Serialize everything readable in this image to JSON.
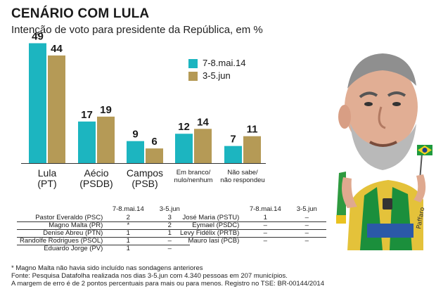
{
  "header": {
    "title": "CENÁRIO COM LULA",
    "subtitle": "Intenção de voto para presidente da República, em %"
  },
  "colors": {
    "series_1": "#1cb5c0",
    "series_2": "#b59a56",
    "axis": "#333333"
  },
  "chart_data": {
    "type": "bar",
    "title": "CENÁRIO COM LULA",
    "subtitle": "Intenção de voto para presidente da República, em %",
    "categories": [
      "Lula (PT)",
      "Aécio (PSDB)",
      "Campos (PSB)",
      "Em branco/ nulo/nenhum",
      "Não sabe/ não respondeu"
    ],
    "category_lines": [
      [
        "Lula",
        "(PT)"
      ],
      [
        "Aécio",
        "(PSDB)"
      ],
      [
        "Campos",
        "(PSB)"
      ],
      [
        "Em branco/",
        "nulo/nenhum"
      ],
      [
        "Não sabe/",
        "não respondeu"
      ]
    ],
    "series": [
      {
        "name": "7-8.mai.14",
        "values": [
          49,
          17,
          9,
          12,
          7
        ]
      },
      {
        "name": "3-5.jun",
        "values": [
          44,
          19,
          6,
          14,
          11
        ]
      }
    ],
    "ylim": [
      0,
      50
    ],
    "xlabel": "",
    "ylabel": "",
    "grid": false,
    "legend_position": "top-right"
  },
  "minor_candidates": {
    "headers": [
      "7-8.mai.14",
      "3-5.jun"
    ],
    "left": [
      {
        "name": "Pastor Everaldo (PSC)",
        "mai": "2",
        "jun": "3"
      },
      {
        "name": "Magno Malta (PR)",
        "mai": "*",
        "jun": "2"
      },
      {
        "name": "Denise Abreu (PTN)",
        "mai": "1",
        "jun": "1"
      },
      {
        "name": "Randolfe Rodrigues (PSOL)",
        "mai": "1",
        "jun": "–"
      },
      {
        "name": "Eduardo Jorge (PV)",
        "mai": "1",
        "jun": "–"
      }
    ],
    "right": [
      {
        "name": "José Maria (PSTU)",
        "mai": "1",
        "jun": "–"
      },
      {
        "name": "Eymael (PSDC)",
        "mai": "–",
        "jun": "–"
      },
      {
        "name": "Levy Fidélix (PRTB)",
        "mai": "–",
        "jun": "–"
      },
      {
        "name": "Mauro Iasi (PCB)",
        "mai": "–",
        "jun": "–"
      }
    ]
  },
  "notes": [
    "* Magno Malta não havia sido incluído nas sondagens anteriores",
    "Fonte: Pesquisa Datafolha realizada nos dias 3-5.jun com 4.340 pessoas em 207 municípios.",
    "A margem de erro é de 2 pontos percentuais para mais ou para menos. Registro no TSE: BR-00144/2014"
  ],
  "illustration": {
    "signature": "Paffaro",
    "icon": "lula-caricature"
  }
}
